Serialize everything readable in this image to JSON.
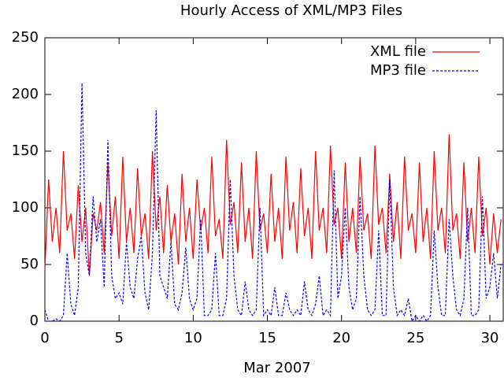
{
  "chart_data": {
    "type": "line",
    "title": "Hourly Access of XML/MP3 Files",
    "x_label": "Mar 2007",
    "x": [
      0,
      0.25,
      0.5,
      0.75,
      1,
      1.25,
      1.5,
      1.75,
      2,
      2.25,
      2.5,
      2.75,
      3,
      3.25,
      3.5,
      3.75,
      4,
      4.25,
      4.5,
      4.75,
      5,
      5.25,
      5.5,
      5.75,
      6,
      6.25,
      6.5,
      6.75,
      7,
      7.25,
      7.5,
      7.75,
      8,
      8.25,
      8.5,
      8.75,
      9,
      9.25,
      9.5,
      9.75,
      10,
      10.25,
      10.5,
      10.75,
      11,
      11.25,
      11.5,
      11.75,
      12,
      12.25,
      12.5,
      12.75,
      13,
      13.25,
      13.5,
      13.75,
      14,
      14.25,
      14.5,
      14.75,
      15,
      15.25,
      15.5,
      15.75,
      16,
      16.25,
      16.5,
      16.75,
      17,
      17.25,
      17.5,
      17.75,
      18,
      18.25,
      18.5,
      18.75,
      19,
      19.25,
      19.5,
      19.75,
      20,
      20.25,
      20.5,
      20.75,
      21,
      21.25,
      21.5,
      21.75,
      22,
      22.25,
      22.5,
      22.75,
      23,
      23.25,
      23.5,
      23.75,
      24,
      24.25,
      24.5,
      24.75,
      25,
      25.25,
      25.5,
      25.75,
      26,
      26.25,
      26.5,
      26.75,
      27,
      27.25,
      27.5,
      27.75,
      28,
      28.25,
      28.5,
      28.75,
      29,
      29.25,
      29.5,
      29.75,
      30,
      30.25,
      30.5,
      30.75
    ],
    "series": [
      {
        "name": "XML file",
        "color": "#ff0000",
        "line_style": "solid",
        "values": [
          45,
          125,
          70,
          100,
          60,
          150,
          80,
          95,
          55,
          120,
          70,
          100,
          40,
          95,
          80,
          105,
          60,
          140,
          75,
          110,
          55,
          145,
          70,
          100,
          60,
          135,
          75,
          95,
          55,
          150,
          80,
          110,
          60,
          120,
          70,
          95,
          50,
          130,
          70,
          100,
          55,
          125,
          80,
          100,
          60,
          145,
          75,
          90,
          55,
          160,
          85,
          105,
          60,
          140,
          70,
          100,
          55,
          150,
          80,
          95,
          60,
          130,
          70,
          100,
          55,
          145,
          80,
          105,
          60,
          135,
          75,
          100,
          55,
          150,
          80,
          100,
          60,
          155,
          85,
          100,
          55,
          140,
          70,
          100,
          60,
          145,
          80,
          95,
          55,
          155,
          85,
          100,
          60,
          130,
          70,
          105,
          55,
          145,
          80,
          95,
          60,
          140,
          70,
          100,
          55,
          150,
          80,
          100,
          60,
          165,
          80,
          95,
          55,
          140,
          70,
          100,
          60,
          145,
          75,
          100,
          50,
          95,
          60,
          90
        ]
      },
      {
        "name": "MP3 file",
        "color": "#0000ff",
        "line_style": "dashed",
        "values": [
          10,
          0,
          0,
          2,
          0,
          5,
          60,
          15,
          5,
          30,
          210,
          60,
          40,
          110,
          70,
          90,
          30,
          160,
          40,
          20,
          25,
          15,
          70,
          30,
          20,
          55,
          75,
          25,
          10,
          60,
          186,
          40,
          30,
          20,
          70,
          15,
          10,
          25,
          65,
          20,
          10,
          20,
          90,
          5,
          5,
          10,
          60,
          5,
          5,
          20,
          125,
          40,
          10,
          5,
          35,
          10,
          5,
          10,
          100,
          5,
          10,
          5,
          30,
          5,
          5,
          25,
          10,
          5,
          10,
          5,
          35,
          10,
          5,
          15,
          40,
          5,
          10,
          5,
          133,
          20,
          40,
          100,
          30,
          10,
          20,
          110,
          40,
          10,
          5,
          10,
          80,
          5,
          5,
          125,
          30,
          5,
          10,
          5,
          20,
          0,
          5,
          0,
          5,
          0,
          5,
          80,
          30,
          5,
          5,
          90,
          40,
          10,
          5,
          20,
          100,
          5,
          5,
          10,
          110,
          20,
          30,
          60,
          20,
          50
        ]
      }
    ],
    "xlim": [
      0,
      30.9
    ],
    "xticks": [
      0,
      5,
      10,
      15,
      20,
      25,
      30
    ],
    "ylim": [
      0,
      250
    ],
    "yticks": [
      0,
      50,
      100,
      150,
      200,
      250
    ],
    "grid": false,
    "legend": "top-right"
  }
}
